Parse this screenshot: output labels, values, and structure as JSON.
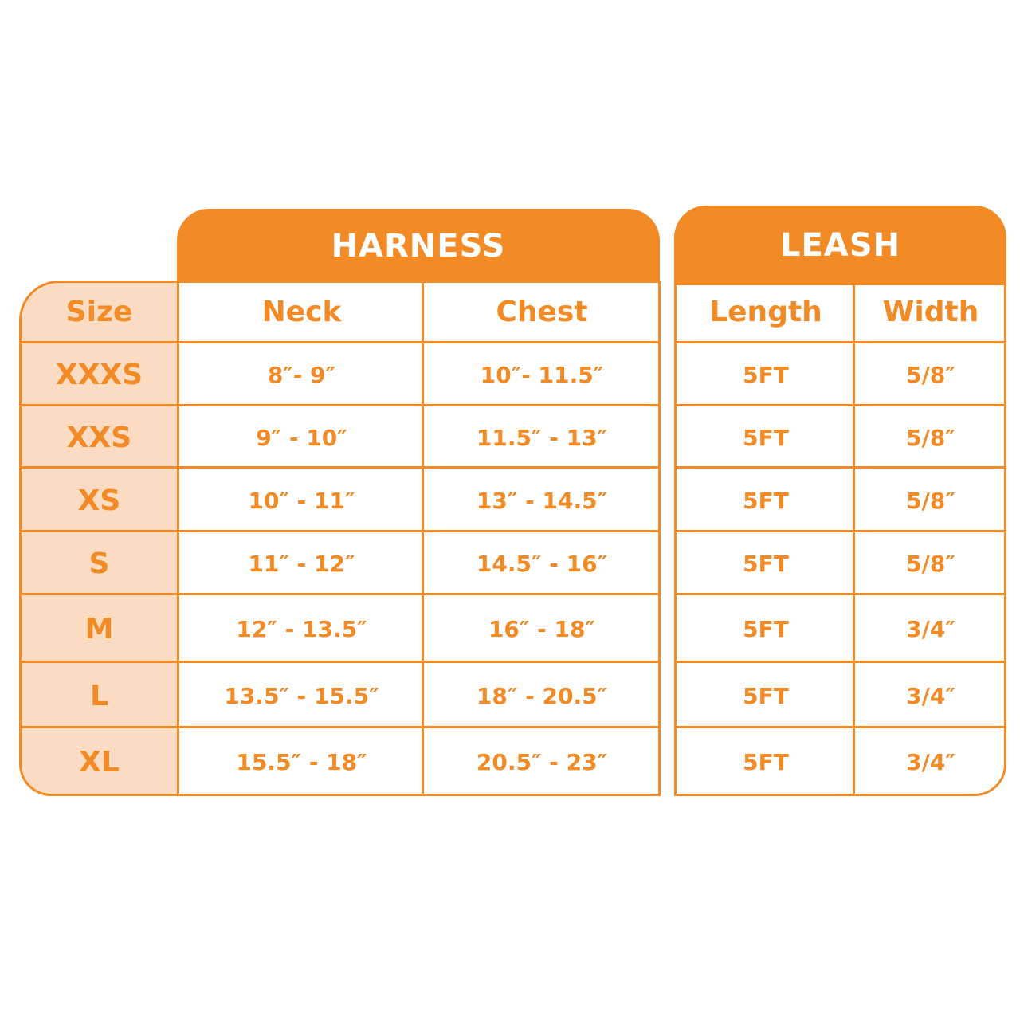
{
  "colors": {
    "accent": "#F28A25",
    "size_column_bg": "#FBDCC2",
    "background": "#FFFFFF"
  },
  "harness": {
    "title": "HARNESS",
    "columns": [
      "Neck",
      "Chest"
    ]
  },
  "leash": {
    "title": "LEASH",
    "columns": [
      "Length",
      "Width"
    ]
  },
  "size_header": "Size",
  "rows": [
    {
      "size": "XXXS",
      "neck": "8″- 9″",
      "chest": "10″- 11.5″",
      "length": "5FT",
      "width": "5/8″"
    },
    {
      "size": "XXS",
      "neck": "9″ - 10″",
      "chest": "11.5″ - 13″",
      "length": "5FT",
      "width": "5/8″"
    },
    {
      "size": "XS",
      "neck": "10″ - 11″",
      "chest": "13″ - 14.5″",
      "length": "5FT",
      "width": "5/8″"
    },
    {
      "size": "S",
      "neck": "11″ - 12″",
      "chest": "14.5″ - 16″",
      "length": "5FT",
      "width": "5/8″"
    },
    {
      "size": "M",
      "neck": "12″ - 13.5″",
      "chest": "16″ - 18″",
      "length": "5FT",
      "width": "3/4″"
    },
    {
      "size": "L",
      "neck": "13.5″ - 15.5″",
      "chest": "18″ - 20.5″",
      "length": "5FT",
      "width": "3/4″"
    },
    {
      "size": "XL",
      "neck": "15.5″ - 18″",
      "chest": "20.5″ - 23″",
      "length": "5FT",
      "width": "3/4″"
    }
  ]
}
